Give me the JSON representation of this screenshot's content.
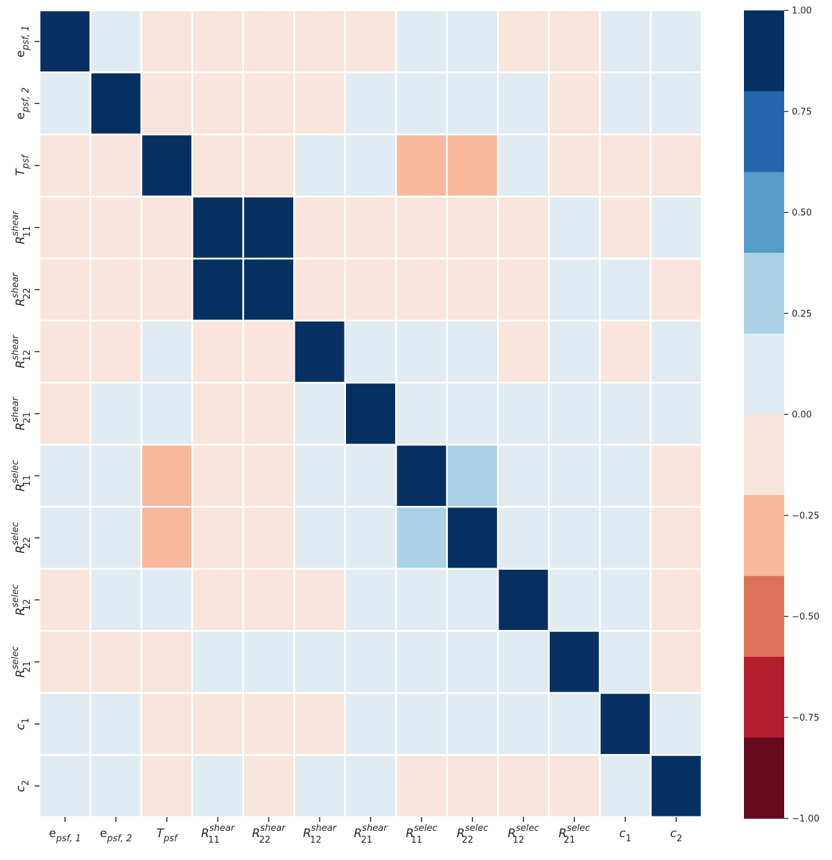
{
  "chart_data": {
    "type": "heatmap",
    "title": "",
    "xlabel": "",
    "ylabel": "",
    "labels": [
      {
        "base": "e",
        "sub": "psf, 1",
        "sup": ""
      },
      {
        "base": "e",
        "sub": "psf, 2",
        "sup": ""
      },
      {
        "base": "T",
        "sub": "psf",
        "sup": ""
      },
      {
        "base": "R",
        "sub": "11",
        "sup": "shear"
      },
      {
        "base": "R",
        "sub": "22",
        "sup": "shear"
      },
      {
        "base": "R",
        "sub": "12",
        "sup": "shear"
      },
      {
        "base": "R",
        "sub": "21",
        "sup": "shear"
      },
      {
        "base": "R",
        "sub": "11",
        "sup": "selec"
      },
      {
        "base": "R",
        "sub": "22",
        "sup": "selec"
      },
      {
        "base": "R",
        "sub": "12",
        "sup": "selec"
      },
      {
        "base": "R",
        "sub": "21",
        "sup": "selec"
      },
      {
        "base": "c",
        "sub": "1",
        "sup": ""
      },
      {
        "base": "c",
        "sub": "2",
        "sup": ""
      }
    ],
    "matrix": [
      [
        1.0,
        0.05,
        -0.05,
        -0.05,
        -0.05,
        -0.05,
        -0.05,
        0.05,
        0.05,
        -0.05,
        -0.05,
        0.05,
        0.05
      ],
      [
        0.05,
        1.0,
        -0.05,
        -0.05,
        -0.05,
        -0.05,
        0.05,
        0.05,
        0.05,
        0.05,
        -0.05,
        0.05,
        0.05
      ],
      [
        -0.05,
        -0.05,
        1.0,
        -0.05,
        -0.05,
        0.05,
        0.05,
        -0.3,
        -0.3,
        0.05,
        -0.05,
        -0.05,
        -0.05
      ],
      [
        -0.05,
        -0.05,
        -0.05,
        1.0,
        0.8,
        -0.05,
        -0.05,
        -0.05,
        -0.05,
        -0.05,
        0.05,
        -0.05,
        0.05
      ],
      [
        -0.05,
        -0.05,
        -0.05,
        0.8,
        1.0,
        -0.05,
        -0.05,
        -0.05,
        -0.05,
        -0.05,
        0.05,
        0.05,
        -0.05
      ],
      [
        -0.05,
        -0.05,
        0.05,
        -0.05,
        -0.05,
        1.0,
        0.05,
        0.05,
        0.05,
        -0.05,
        0.05,
        -0.05,
        0.05
      ],
      [
        -0.05,
        0.05,
        0.05,
        -0.05,
        -0.05,
        0.05,
        1.0,
        0.05,
        0.05,
        0.05,
        0.05,
        0.05,
        0.05
      ],
      [
        0.05,
        0.05,
        -0.3,
        -0.05,
        -0.05,
        0.05,
        0.05,
        1.0,
        0.3,
        0.05,
        0.05,
        0.05,
        -0.05
      ],
      [
        0.05,
        0.05,
        -0.3,
        -0.05,
        -0.05,
        0.05,
        0.05,
        0.3,
        1.0,
        0.05,
        0.05,
        0.05,
        -0.05
      ],
      [
        -0.05,
        0.05,
        0.05,
        -0.05,
        -0.05,
        -0.05,
        0.05,
        0.05,
        0.05,
        1.0,
        0.05,
        0.05,
        -0.05
      ],
      [
        -0.05,
        -0.05,
        -0.05,
        0.05,
        0.05,
        0.05,
        0.05,
        0.05,
        0.05,
        0.05,
        1.0,
        0.05,
        -0.05
      ],
      [
        0.05,
        0.05,
        -0.05,
        -0.05,
        -0.05,
        -0.05,
        0.05,
        0.05,
        0.05,
        0.05,
        0.05,
        1.0,
        0.05
      ],
      [
        0.05,
        0.05,
        -0.05,
        0.05,
        -0.05,
        0.05,
        0.05,
        -0.05,
        -0.05,
        -0.05,
        -0.05,
        0.05,
        1.0
      ]
    ],
    "vmin": -1.0,
    "vmax": 1.0,
    "colorbar": {
      "ticks": [
        1.0,
        0.75,
        0.5,
        0.25,
        0.0,
        -0.25,
        -0.5,
        -0.75,
        -1.0
      ],
      "tick_labels": [
        "1.00",
        "0.75",
        "0.50",
        "0.25",
        "0.00",
        "−0.25",
        "−0.50",
        "−0.75",
        "−1.00"
      ],
      "colors_top_to_bottom": [
        "#053061",
        "#2267ac",
        "#539dc8",
        "#aad1e6",
        "#e1ebf2",
        "#f9e5db",
        "#f7b89c",
        "#de725b",
        "#b31c2c",
        "#670a1f"
      ],
      "placement": "right"
    },
    "grid_lines_color": "#ffffff"
  }
}
